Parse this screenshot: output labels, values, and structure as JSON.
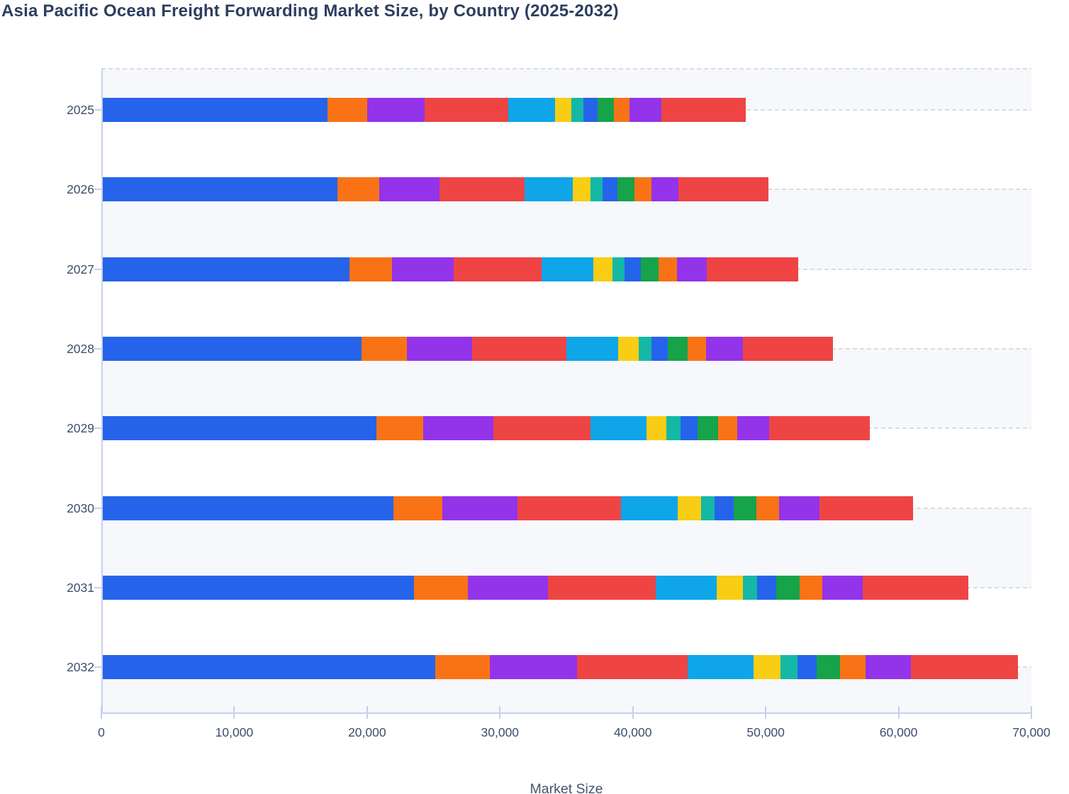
{
  "title": "Asia Pacific Ocean Freight Forwarding Market Size, by Country (2025-2032)",
  "chart_data": {
    "type": "bar",
    "orientation": "horizontal",
    "stacked": true,
    "title": "Asia Pacific Ocean Freight Forwarding Market Size, by Country (2025-2032)",
    "xlabel": "Market Size",
    "ylabel": "",
    "categories": [
      "2025",
      "2026",
      "2027",
      "2028",
      "2029",
      "2030",
      "2031",
      "2032"
    ],
    "xlim": [
      0,
      70000
    ],
    "x_tick_values": [
      0,
      10000,
      20000,
      30000,
      40000,
      50000,
      60000,
      70000
    ],
    "x_ticks": [
      "0",
      "10,000",
      "20,000",
      "30,000",
      "40,000",
      "50,000",
      "60,000",
      "70,000"
    ],
    "grid": "horizontal-dashed",
    "legend_visible": false,
    "series": [
      {
        "name": "series-1",
        "color": "#2563eb",
        "values": [
          17030,
          17750,
          18650,
          19600,
          20720,
          21980,
          23550,
          25130
        ]
      },
      {
        "name": "series-2",
        "color": "#f97316",
        "values": [
          2970,
          3190,
          3240,
          3420,
          3510,
          3690,
          4010,
          4090
        ]
      },
      {
        "name": "series-3",
        "color": "#9333ea",
        "values": [
          4320,
          4500,
          4630,
          4910,
          5270,
          5630,
          6030,
          6580
        ]
      },
      {
        "name": "series-4",
        "color": "#ef4444",
        "values": [
          6300,
          6390,
          6620,
          7060,
          7330,
          7790,
          8140,
          8330
        ]
      },
      {
        "name": "series-5",
        "color": "#0ea5e9",
        "values": [
          3510,
          3640,
          3910,
          3910,
          4190,
          4270,
          4590,
          4950
        ]
      },
      {
        "name": "series-6",
        "color": "#f9cd13",
        "values": [
          1260,
          1350,
          1440,
          1540,
          1530,
          1800,
          1940,
          2020
        ]
      },
      {
        "name": "series-7",
        "color": "#14b8a6",
        "values": [
          900,
          900,
          900,
          950,
          1030,
          990,
          1080,
          1270
        ]
      },
      {
        "name": "series-8",
        "color": "#2563eb",
        "values": [
          1040,
          1130,
          1210,
          1260,
          1310,
          1440,
          1430,
          1440
        ]
      },
      {
        "name": "series-9",
        "color": "#16a34a",
        "values": [
          1250,
          1300,
          1360,
          1490,
          1520,
          1710,
          1760,
          1800
        ]
      },
      {
        "name": "series-10",
        "color": "#f97316",
        "values": [
          1180,
          1270,
          1350,
          1400,
          1440,
          1710,
          1750,
          1930
        ]
      },
      {
        "name": "series-11",
        "color": "#9333ea",
        "values": [
          2380,
          2020,
          2260,
          2740,
          2430,
          3020,
          3020,
          3390
        ]
      },
      {
        "name": "series-12",
        "color": "#ef4444",
        "values": [
          6360,
          6750,
          6890,
          6800,
          7560,
          7070,
          7960,
          8070
        ]
      }
    ],
    "totals": [
      48500,
      50190,
      52460,
      55080,
      57840,
      61100,
      65260,
      69000
    ]
  },
  "colors": {
    "background": "#ffffff",
    "row_band": "#f6f8fb",
    "gridline": "#d8dce3",
    "axis_line": "#c8cfe9",
    "title_text": "#2d3e5f",
    "tick_text": "#3d4e6d",
    "axis_title_text": "#44546e"
  }
}
